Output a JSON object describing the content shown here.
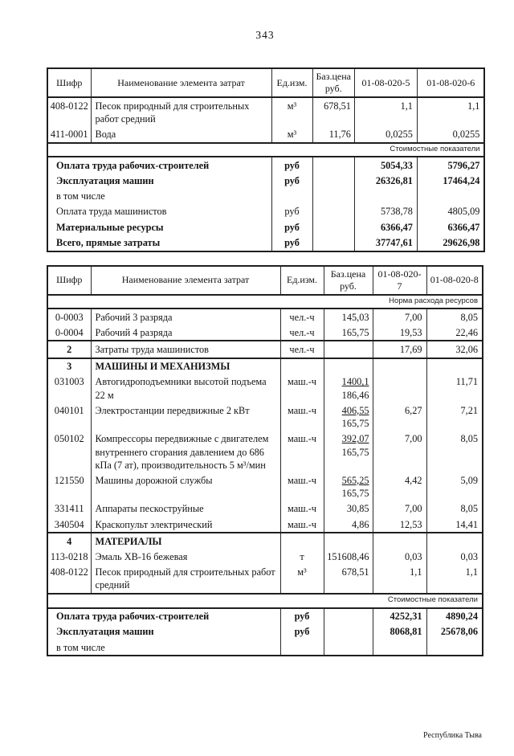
{
  "page": {
    "number": "343",
    "footer": "Республика Тыва"
  },
  "tables": [
    {
      "header": {
        "code": "Шифр",
        "name": "Наименование элемента затрат",
        "unit": "Ед.изм.",
        "price": "Баз.цена руб.",
        "v1": "01-08-020-5",
        "v2": "01-08-020-6"
      },
      "rows": [
        {
          "type": "item",
          "code": "408-0122",
          "name": "Песок природный для строительных работ средний",
          "unit": "м³",
          "price": "678,51",
          "v1": "1,1",
          "v2": "1,1"
        },
        {
          "type": "item",
          "code": "411-0001",
          "name": "Вода",
          "unit": "м³",
          "price": "11,76",
          "v1": "0,0255",
          "v2": "0,0255"
        },
        {
          "type": "note",
          "text": "Стоимостные показатели"
        },
        {
          "type": "total",
          "bold": true,
          "name": "Оплата труда рабочих-строителей",
          "unit": "руб",
          "v1": "5054,33",
          "v2": "5796,27"
        },
        {
          "type": "total",
          "bold": true,
          "name": "Эксплуатация машин",
          "unit": "руб",
          "v1": "26326,81",
          "v2": "17464,24"
        },
        {
          "type": "total",
          "bold": false,
          "name": "в том числе",
          "unit": "",
          "v1": "",
          "v2": ""
        },
        {
          "type": "total",
          "bold": false,
          "name": "Оплата труда машинистов",
          "unit": "руб",
          "v1": "5738,78",
          "v2": "4805,09"
        },
        {
          "type": "total",
          "bold": true,
          "name": "Материальные ресурсы",
          "unit": "руб",
          "v1": "6366,47",
          "v2": "6366,47"
        },
        {
          "type": "total",
          "bold": true,
          "name": "Всего, прямые затраты",
          "unit": "руб",
          "v1": "37747,61",
          "v2": "29626,98"
        }
      ]
    },
    {
      "header": {
        "code": "Шифр",
        "name": "Наименование элемента затрат",
        "unit": "Ед.изм.",
        "price": "Баз.цена руб.",
        "v1": "01-08-020-7",
        "v2": "01-08-020-8"
      },
      "rows": [
        {
          "type": "note",
          "text": "Норма расхода ресурсов"
        },
        {
          "type": "item",
          "code": "0-0003",
          "name": "Рабочий 3 разряда",
          "unit": "чел.-ч",
          "price": "145,03",
          "v1": "7,00",
          "v2": "8,05"
        },
        {
          "type": "item",
          "code": "0-0004",
          "name": "Рабочий 4 разряда",
          "unit": "чел.-ч",
          "price": "165,75",
          "v1": "19,53",
          "v2": "22,46"
        },
        {
          "type": "item",
          "sep": true,
          "bold_code": true,
          "code": "2",
          "name": "Затраты труда машинистов",
          "unit": "чел.-ч",
          "price": "",
          "v1": "17,69",
          "v2": "32,06"
        },
        {
          "type": "category",
          "sep": true,
          "code": "3",
          "name": "МАШИНЫ И МЕХАНИЗМЫ"
        },
        {
          "type": "item",
          "code": "031003",
          "name": "Автогидроподъемники высотой подъема 22 м",
          "unit": "маш.-ч",
          "price": {
            "top": "1400,1",
            "bottom": "186,46"
          },
          "v1": "",
          "v2": "11,71"
        },
        {
          "type": "item",
          "code": "040101",
          "name": "Электростанции передвижные 2 кВт",
          "unit": "маш.-ч",
          "price": {
            "top": "406,55",
            "bottom": "165,75"
          },
          "v1": "6,27",
          "v2": "7,21"
        },
        {
          "type": "item",
          "code": "050102",
          "name": "Компрессоры передвижные с двигателем внутреннего сгорания давлением до 686 кПа (7 ат), производительность 5 м³/мин",
          "unit": "маш.-ч",
          "price": {
            "top": "392,07",
            "bottom": "165,75"
          },
          "v1": "7,00",
          "v2": "8,05"
        },
        {
          "type": "item",
          "code": "121550",
          "name": "Машины дорожной службы",
          "unit": "маш.-ч",
          "price": {
            "top": "565,25",
            "bottom": "165,75"
          },
          "v1": "4,42",
          "v2": "5,09"
        },
        {
          "type": "item",
          "code": "331411",
          "name": "Аппараты пескоструйные",
          "unit": "маш.-ч",
          "price": "30,85",
          "v1": "7,00",
          "v2": "8,05"
        },
        {
          "type": "item",
          "code": "340504",
          "name": "Краскопульт электрический",
          "unit": "маш.-ч",
          "price": "4,86",
          "v1": "12,53",
          "v2": "14,41"
        },
        {
          "type": "category",
          "sep": true,
          "code": "4",
          "name": "МАТЕРИАЛЫ"
        },
        {
          "type": "item",
          "code": "113-0218",
          "name": "Эмаль ХВ-16 бежевая",
          "unit": "т",
          "price": "151608,46",
          "v1": "0,03",
          "v2": "0,03"
        },
        {
          "type": "item",
          "code": "408-0122",
          "name": "Песок природный для строительных работ средний",
          "unit": "м³",
          "price": "678,51",
          "v1": "1,1",
          "v2": "1,1"
        },
        {
          "type": "note",
          "text": "Стоимостные показатели"
        },
        {
          "type": "total",
          "bold": true,
          "name": "Оплата труда рабочих-строителей",
          "unit": "руб",
          "v1": "4252,31",
          "v2": "4890,24"
        },
        {
          "type": "total",
          "bold": true,
          "name": "Эксплуатация машин",
          "unit": "руб",
          "v1": "8068,81",
          "v2": "25678,06"
        },
        {
          "type": "total",
          "bold": false,
          "name": "в том числе",
          "unit": "",
          "v1": "",
          "v2": ""
        }
      ]
    }
  ]
}
